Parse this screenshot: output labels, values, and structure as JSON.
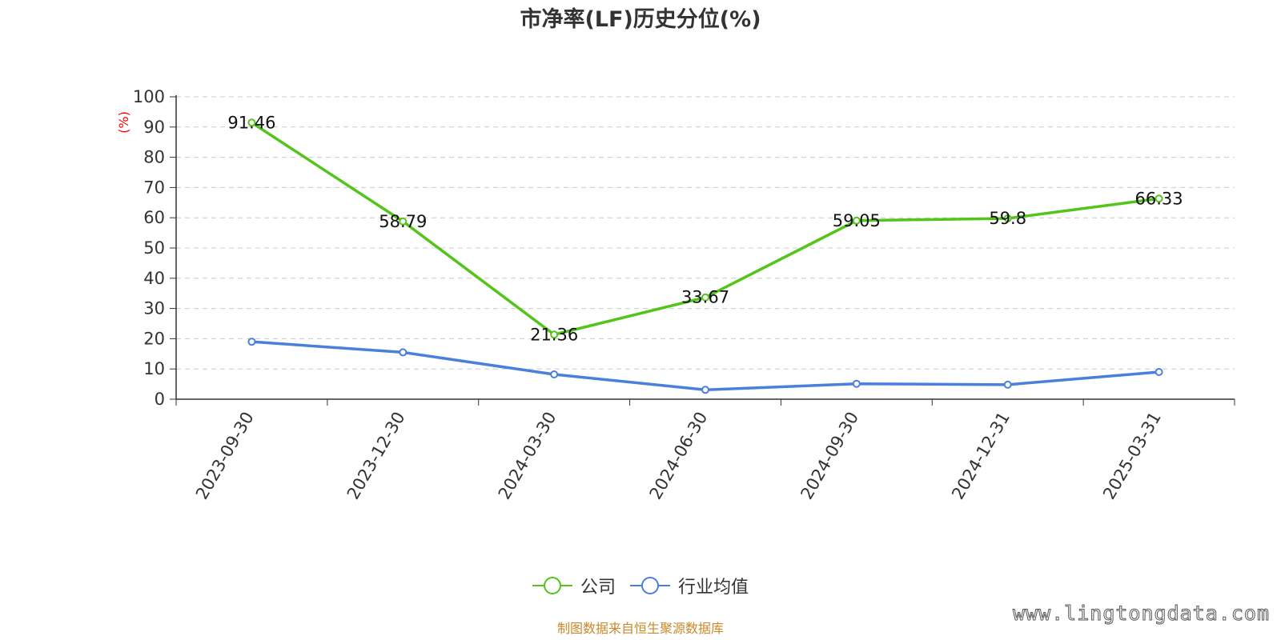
{
  "chart_data": {
    "type": "line",
    "title": "市净率(LF)历史分位(%)",
    "ylabel": "(%)",
    "xlabel": "",
    "categories": [
      "2023-09-30",
      "2023-12-30",
      "2024-03-30",
      "2024-06-30",
      "2024-09-30",
      "2024-12-31",
      "2025-03-31"
    ],
    "ylim": [
      0,
      100
    ],
    "yticks": [
      "0",
      "10",
      "20",
      "30",
      "40",
      "50",
      "60",
      "70",
      "80",
      "90",
      "100"
    ],
    "grid": true,
    "legend_position": "bottom",
    "series": [
      {
        "name": "公司",
        "color": "#52c41a",
        "values": [
          91.46,
          58.79,
          21.36,
          33.67,
          59.05,
          59.8,
          66.33
        ],
        "labels": [
          "91.46",
          "58.79",
          "21.36",
          "33.67",
          "59.05",
          "59.8",
          "66.33"
        ]
      },
      {
        "name": "行业均值",
        "color": "#4a7fdb",
        "values": [
          19.0,
          15.5,
          8.2,
          3.1,
          5.1,
          4.8,
          9.0
        ]
      }
    ]
  },
  "source": "制图数据来自恒生聚源数据库",
  "watermark": "www.lingtongdata.com"
}
